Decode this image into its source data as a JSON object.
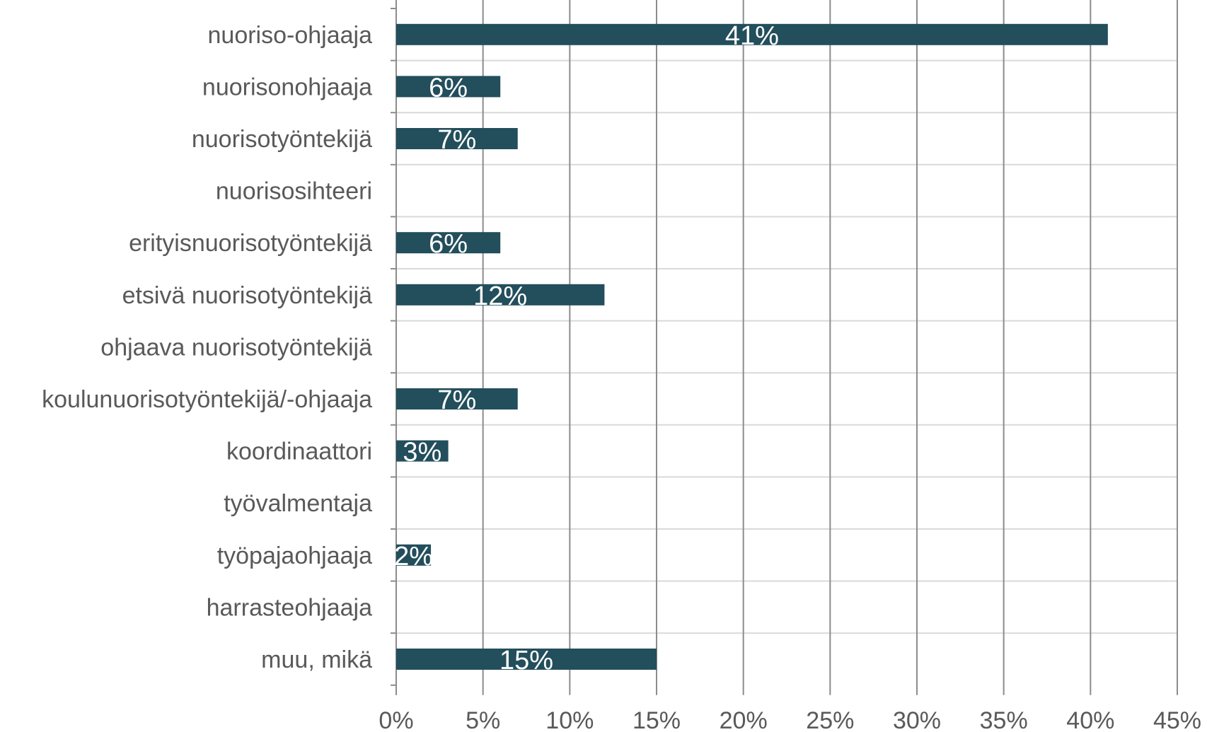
{
  "chart_data": {
    "type": "bar",
    "orientation": "horizontal",
    "categories": [
      "nuoriso-ohjaaja",
      "nuorisonohjaaja",
      "nuorisotyöntekijä",
      "nuorisosihteeri",
      "erityisnuorisotyöntekijä",
      "etsivä nuorisotyöntekijä",
      "ohjaava nuorisotyöntekijä",
      "koulunuorisotyöntekijä/-ohjaaja",
      "koordinaattori",
      "työvalmentaja",
      "työpajaohjaaja",
      "harrasteohjaaja",
      "muu, mikä"
    ],
    "values": [
      41,
      6,
      7,
      0,
      6,
      12,
      0,
      7,
      3,
      0,
      2,
      0,
      15
    ],
    "data_labels": [
      "41%",
      "6%",
      "7%",
      "",
      "6%",
      "12%",
      "",
      "7%",
      "3%",
      "",
      "2%",
      "",
      "15%"
    ],
    "xlim": [
      0,
      45
    ],
    "xticks": [
      0,
      5,
      10,
      15,
      20,
      25,
      30,
      35,
      40,
      45
    ],
    "xtick_labels": [
      "0%",
      "5%",
      "10%",
      "15%",
      "20%",
      "25%",
      "30%",
      "35%",
      "40%",
      "45%"
    ],
    "title": "",
    "xlabel": "",
    "ylabel": "",
    "grid": true,
    "legend": "none",
    "colors": {
      "bar": "#234e5c",
      "grid": "#8c8c8c",
      "row_separator": "#d9d9d9",
      "text": "#595959",
      "data_label": "#ffffff"
    }
  }
}
